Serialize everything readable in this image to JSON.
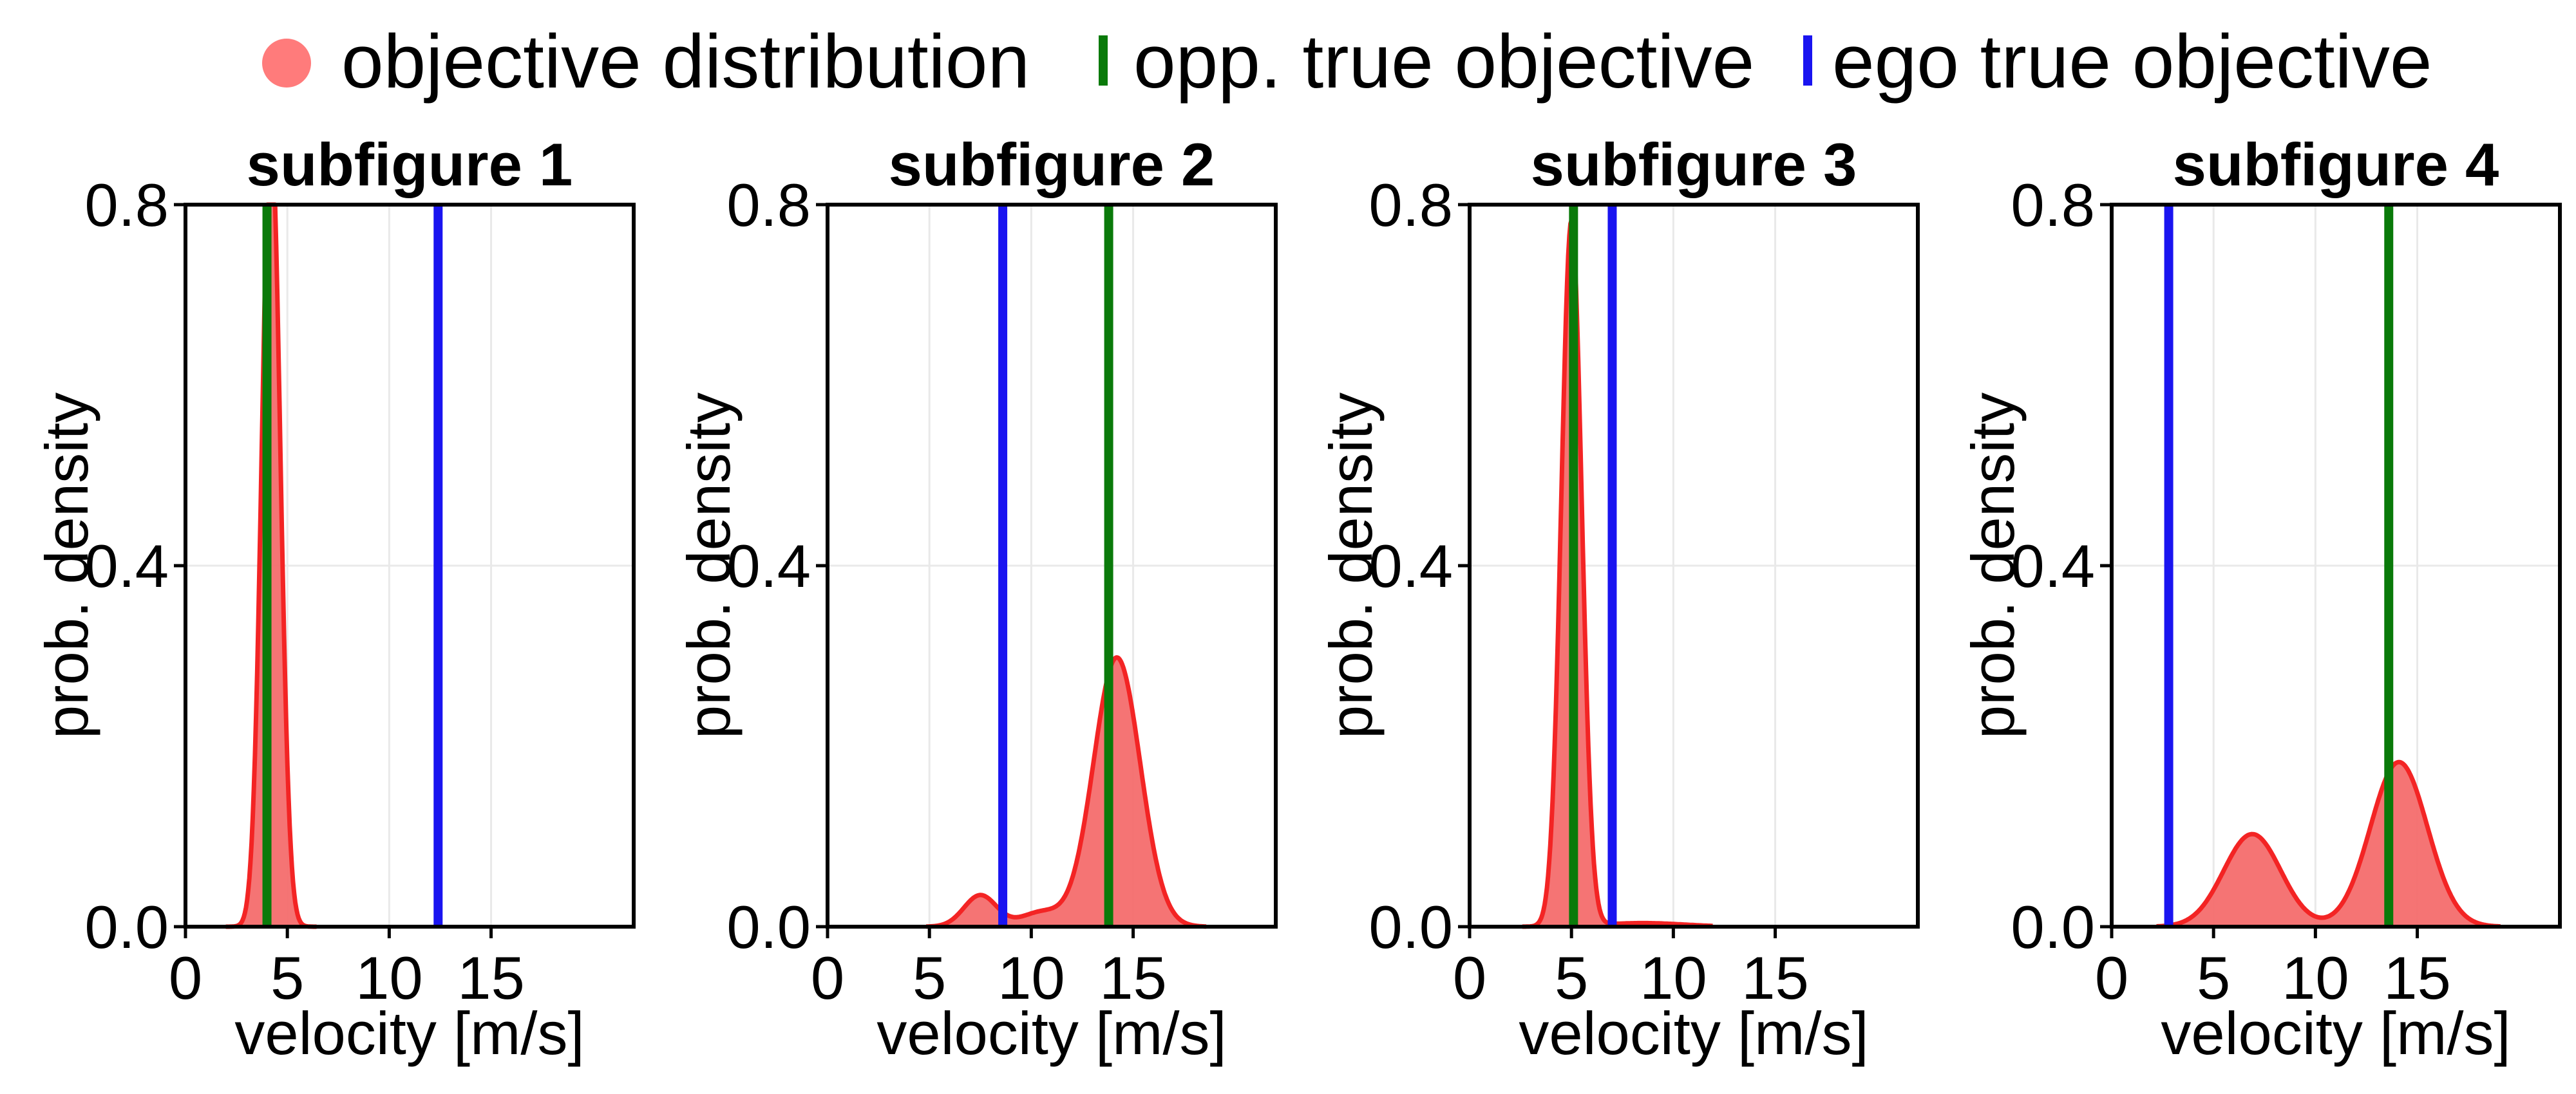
{
  "figure": {
    "legend": [
      {
        "label": "objective distribution",
        "marker": "circle",
        "color": "#ff7b7b"
      },
      {
        "label": "opp. true objective",
        "marker": "vline",
        "color": "#0a7a0a"
      },
      {
        "label": "ego true objective",
        "marker": "vline",
        "color": "#1a14f0"
      }
    ],
    "colors": {
      "distribution_fill": "#f46d6d",
      "distribution_line": "#f32424",
      "opp_line": "#0a7a0a",
      "ego_line": "#1a14f0"
    }
  },
  "chart_data": [
    {
      "type": "area",
      "title": "subfigure 1",
      "xlabel": "velocity [m/s]",
      "ylabel": "prob. density",
      "xlim": [
        0,
        22
      ],
      "ylim": [
        0,
        0.8
      ],
      "xticks": [
        0,
        5,
        10,
        15
      ],
      "yticks": [
        0.0,
        0.4,
        0.8
      ],
      "x_tick_labels": [
        "0",
        "5",
        "10",
        "15"
      ],
      "y_tick_labels": [
        "0.0",
        "0.4",
        "0.8"
      ],
      "grid": true,
      "series": [
        {
          "name": "objective distribution",
          "components": [
            {
              "weight": 1.0,
              "mean": 4.2,
              "sd": 0.45
            }
          ]
        }
      ],
      "opp_true_objective": 4.0,
      "ego_true_objective": 12.4
    },
    {
      "type": "area",
      "title": "subfigure 2",
      "xlabel": "velocity [m/s]",
      "ylabel": "prob. density",
      "xlim": [
        0,
        22
      ],
      "ylim": [
        0,
        0.8
      ],
      "xticks": [
        0,
        5,
        10,
        15
      ],
      "yticks": [
        0.0,
        0.4,
        0.8
      ],
      "x_tick_labels": [
        "0",
        "5",
        "10",
        "15"
      ],
      "y_tick_labels": [
        "0.0",
        "0.4",
        "0.8"
      ],
      "grid": true,
      "series": [
        {
          "name": "objective distribution",
          "components": [
            {
              "weight": 0.07,
              "mean": 7.5,
              "sd": 0.8
            },
            {
              "weight": 0.04,
              "mean": 10.5,
              "sd": 1.0
            },
            {
              "weight": 0.86,
              "mean": 14.2,
              "sd": 1.15
            }
          ]
        }
      ],
      "opp_true_objective": 13.8,
      "ego_true_objective": 8.6
    },
    {
      "type": "area",
      "title": "subfigure 3",
      "xlabel": "velocity [m/s]",
      "ylabel": "prob. density",
      "xlim": [
        0,
        22
      ],
      "ylim": [
        0,
        0.8
      ],
      "xticks": [
        0,
        5,
        10,
        15
      ],
      "yticks": [
        0.0,
        0.4,
        0.8
      ],
      "x_tick_labels": [
        "0",
        "5",
        "10",
        "15"
      ],
      "y_tick_labels": [
        "0.0",
        "0.4",
        "0.8"
      ],
      "grid": true,
      "series": [
        {
          "name": "objective distribution",
          "components": [
            {
              "weight": 0.98,
              "mean": 5.0,
              "sd": 0.5
            },
            {
              "weight": 0.02,
              "mean": 8.5,
              "sd": 2.0
            }
          ]
        }
      ],
      "opp_true_objective": 5.1,
      "ego_true_objective": 7.0
    },
    {
      "type": "area",
      "title": "subfigure 4",
      "xlabel": "velocity [m/s]",
      "ylabel": "prob. density",
      "xlim": [
        0,
        22
      ],
      "ylim": [
        0,
        0.8
      ],
      "xticks": [
        0,
        5,
        10,
        15
      ],
      "yticks": [
        0.0,
        0.4,
        0.8
      ],
      "x_tick_labels": [
        "0",
        "5",
        "10",
        "15"
      ],
      "y_tick_labels": [
        "0.0",
        "0.4",
        "0.8"
      ],
      "grid": true,
      "series": [
        {
          "name": "objective distribution",
          "components": [
            {
              "weight": 0.36,
              "mean": 6.9,
              "sd": 1.4
            },
            {
              "weight": 0.64,
              "mean": 14.1,
              "sd": 1.4
            }
          ]
        }
      ],
      "opp_true_objective": 13.6,
      "ego_true_objective": 2.8
    }
  ]
}
